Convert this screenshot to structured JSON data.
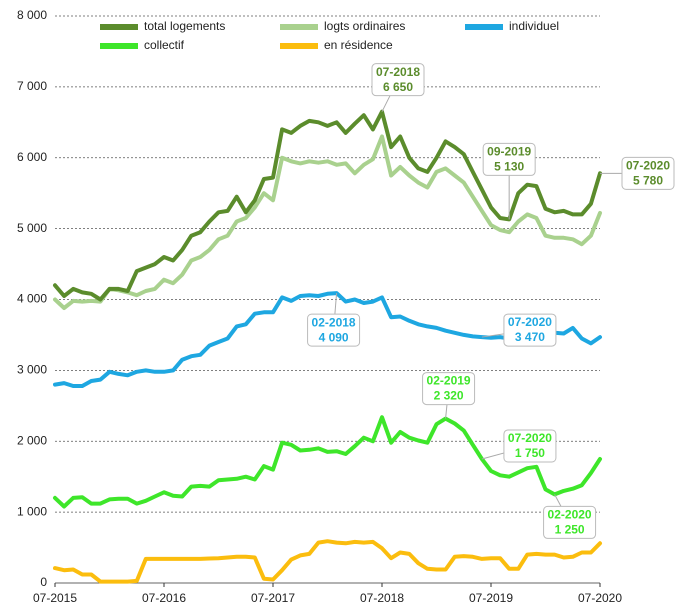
{
  "chart_data": {
    "type": "line",
    "categories": [
      "07-2015",
      null,
      null,
      null,
      null,
      null,
      null,
      null,
      null,
      null,
      null,
      null,
      "07-2016",
      null,
      null,
      null,
      null,
      null,
      null,
      null,
      null,
      null,
      null,
      null,
      "07-2017",
      null,
      null,
      null,
      null,
      null,
      null,
      null,
      null,
      null,
      null,
      null,
      "07-2018",
      null,
      null,
      null,
      null,
      null,
      null,
      null,
      null,
      null,
      null,
      null,
      "07-2019",
      null,
      null,
      null,
      null,
      null,
      null,
      null,
      null,
      null,
      null,
      null,
      "07-2020"
    ],
    "series": [
      {
        "name": "total logements",
        "color": "#5b8c2c",
        "values": [
          4200,
          4050,
          4150,
          4100,
          4080,
          4000,
          4150,
          4150,
          4120,
          4400,
          4450,
          4500,
          4600,
          4550,
          4700,
          4900,
          4950,
          5100,
          5230,
          5250,
          5450,
          5230,
          5400,
          5700,
          5720,
          6400,
          6350,
          6450,
          6520,
          6500,
          6450,
          6500,
          6350,
          6480,
          6600,
          6400,
          6650,
          6150,
          6300,
          6000,
          5850,
          5800,
          6000,
          6230,
          6150,
          6050,
          5800,
          5550,
          5300,
          5150,
          5130,
          5500,
          5620,
          5600,
          5280,
          5230,
          5250,
          5200,
          5200,
          5350,
          5780
        ]
      },
      {
        "name": "logts ordinaires",
        "color": "#a9d18e",
        "values": [
          4000,
          3880,
          3980,
          3970,
          3980,
          3970,
          4150,
          4130,
          4100,
          4060,
          4120,
          4150,
          4280,
          4230,
          4350,
          4550,
          4600,
          4700,
          4850,
          4900,
          5100,
          5150,
          5300,
          5500,
          5400,
          6000,
          5950,
          5920,
          5950,
          5930,
          5950,
          5900,
          5920,
          5780,
          5900,
          5980,
          6300,
          5750,
          5870,
          5750,
          5650,
          5580,
          5800,
          5850,
          5750,
          5650,
          5450,
          5250,
          5050,
          4980,
          4950,
          5100,
          5200,
          5150,
          4900,
          4870,
          4870,
          4850,
          4780,
          4900,
          5220
        ]
      },
      {
        "name": "individuel",
        "color": "#1ea7e1",
        "values": [
          2800,
          2820,
          2780,
          2780,
          2850,
          2870,
          2980,
          2950,
          2930,
          2980,
          3000,
          2980,
          2980,
          3000,
          3150,
          3200,
          3220,
          3350,
          3400,
          3450,
          3620,
          3650,
          3800,
          3820,
          3820,
          4030,
          3980,
          4050,
          4060,
          4050,
          4080,
          4090,
          3970,
          4000,
          3950,
          3970,
          4030,
          3750,
          3760,
          3700,
          3650,
          3620,
          3600,
          3560,
          3530,
          3500,
          3480,
          3470,
          3460,
          3470,
          3450,
          3450,
          3430,
          3500,
          3550,
          3530,
          3520,
          3600,
          3450,
          3380,
          3470
        ]
      },
      {
        "name": "collectif",
        "color": "#3ee62a",
        "values": [
          1200,
          1080,
          1200,
          1210,
          1120,
          1120,
          1180,
          1190,
          1190,
          1120,
          1160,
          1220,
          1280,
          1230,
          1220,
          1360,
          1370,
          1360,
          1450,
          1460,
          1470,
          1500,
          1460,
          1650,
          1600,
          1980,
          1950,
          1870,
          1880,
          1900,
          1850,
          1860,
          1820,
          1930,
          2050,
          2000,
          2340,
          1980,
          2130,
          2050,
          2010,
          1980,
          2240,
          2320,
          2250,
          2150,
          1950,
          1750,
          1580,
          1520,
          1500,
          1560,
          1620,
          1640,
          1320,
          1250,
          1300,
          1330,
          1380,
          1550,
          1750
        ]
      },
      {
        "name": "en résidence",
        "color": "#fbbd0e",
        "values": [
          210,
          180,
          190,
          120,
          120,
          20,
          20,
          20,
          20,
          30,
          340,
          340,
          340,
          340,
          340,
          340,
          340,
          345,
          350,
          360,
          370,
          370,
          360,
          60,
          50,
          180,
          330,
          390,
          410,
          570,
          590,
          570,
          560,
          580,
          570,
          580,
          490,
          350,
          430,
          410,
          280,
          200,
          190,
          190,
          370,
          380,
          370,
          340,
          350,
          350,
          200,
          200,
          400,
          410,
          400,
          400,
          360,
          370,
          430,
          430,
          560
        ]
      }
    ],
    "annotations": [
      {
        "series": "total logements",
        "date": "07-2018",
        "value": 6650,
        "label": "6 650"
      },
      {
        "series": "total logements",
        "date": "09-2019",
        "value": 5130,
        "label": "5 130"
      },
      {
        "series": "total logements",
        "date": "07-2020",
        "value": 5780,
        "label": "5 780"
      },
      {
        "series": "individuel",
        "date": "02-2018",
        "value": 4090,
        "label": "4 090"
      },
      {
        "series": "individuel",
        "date": "07-2020",
        "value": 3470,
        "label": "3 470"
      },
      {
        "series": "collectif",
        "date": "02-2019",
        "value": 2320,
        "label": "2 320"
      },
      {
        "series": "collectif",
        "date": "07-2020",
        "value": 1750,
        "label": "1 750"
      },
      {
        "series": "collectif",
        "date": "02-2020",
        "value": 1250,
        "label": "1 250"
      }
    ],
    "ylim": [
      0,
      8000
    ],
    "yticks": [
      0,
      {
        "value": 1000,
        "label": "1 000"
      },
      {
        "value": 2000,
        "label": "2 000"
      },
      {
        "value": 3000,
        "label": "3 000"
      },
      {
        "value": 4000,
        "label": "4 000"
      },
      {
        "value": 5000,
        "label": "5 000"
      },
      {
        "value": 6000,
        "label": "6 000"
      },
      {
        "value": 7000,
        "label": "7 000"
      },
      {
        "value": 8000,
        "label": "8 000"
      }
    ],
    "grid": true
  }
}
